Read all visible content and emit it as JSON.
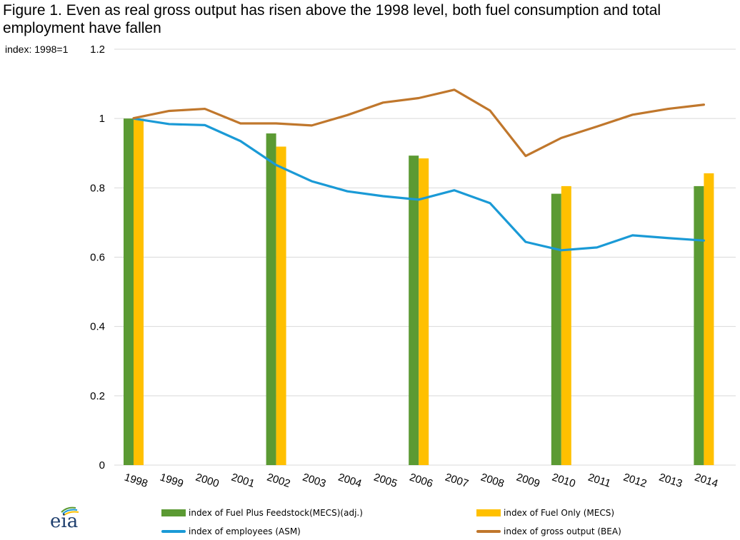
{
  "title": "Figure 1.  Even as real gross output has risen above the 1998 level, both fuel consumption and total employment have fallen",
  "logo_text": "eia",
  "colors": {
    "fuel_feedstock": "#5b9a33",
    "fuel_only": "#ffc000",
    "employees": "#1a9ad6",
    "gross_output": "#c0772c",
    "grid": "#d9d9d9"
  },
  "chart_data": {
    "type": "bar",
    "units_label": "index: 1998=1",
    "ylim": [
      0,
      1.2
    ],
    "yticks": [
      "0",
      "0.2",
      "0.4",
      "0.6",
      "0.8",
      "1",
      "1.2"
    ],
    "ytick_values": [
      0,
      0.2,
      0.4,
      0.6,
      0.8,
      1.0,
      1.2
    ],
    "grid": true,
    "legend_position": "bottom",
    "categories": [
      "1998",
      "1999",
      "2000",
      "2001",
      "2002",
      "2003",
      "2004",
      "2005",
      "2006",
      "2007",
      "2008",
      "2009",
      "2010",
      "2011",
      "2012",
      "2013",
      "2014"
    ],
    "bar_series": [
      {
        "name": "index of Fuel Plus Feedstock(MECS)(adj.)",
        "color": "#5b9a33",
        "values": [
          1.0,
          null,
          null,
          null,
          0.957,
          null,
          null,
          null,
          0.893,
          null,
          null,
          null,
          0.783,
          null,
          null,
          null,
          0.805
        ]
      },
      {
        "name": "index of Fuel Only (MECS)",
        "color": "#ffc000",
        "values": [
          1.0,
          null,
          null,
          null,
          0.919,
          null,
          null,
          null,
          0.885,
          null,
          null,
          null,
          0.805,
          null,
          null,
          null,
          0.842
        ]
      }
    ],
    "line_series": [
      {
        "name": "index of employees (ASM)",
        "color": "#1a9ad6",
        "values": [
          1.0,
          0.984,
          0.981,
          0.935,
          0.866,
          0.819,
          0.79,
          0.776,
          0.766,
          0.793,
          0.756,
          0.644,
          0.62,
          0.628,
          0.663,
          0.655,
          0.648
        ]
      },
      {
        "name": "index of gross output (BEA)",
        "color": "#c0772c",
        "values": [
          1.001,
          1.022,
          1.028,
          0.986,
          0.986,
          0.98,
          1.01,
          1.046,
          1.059,
          1.083,
          1.023,
          0.892,
          0.944,
          0.977,
          1.011,
          1.028,
          1.04
        ]
      }
    ]
  }
}
